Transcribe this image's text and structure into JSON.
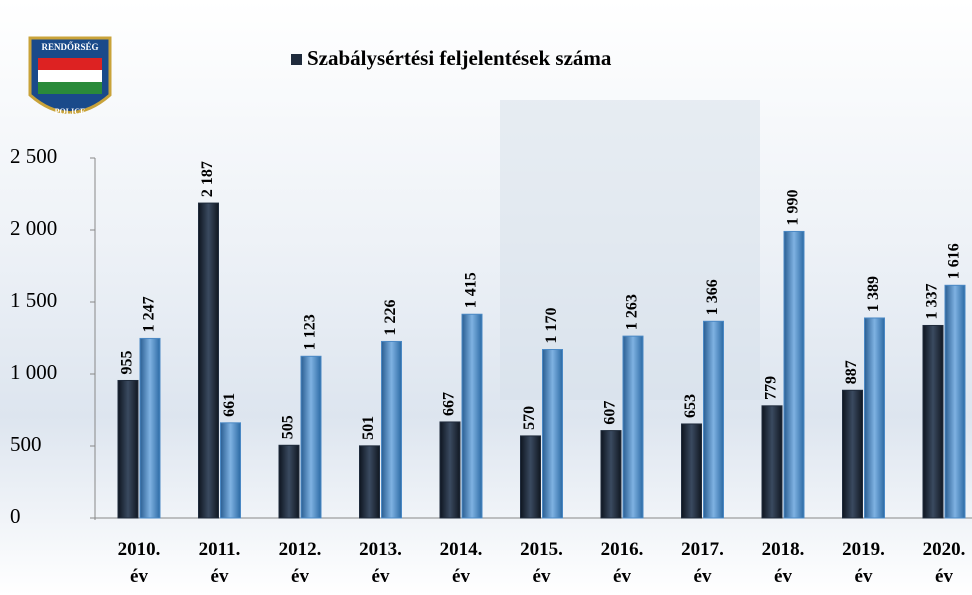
{
  "logo": {
    "top": "RENDŐRSÉG",
    "bottom": "POLICE"
  },
  "chart_data": {
    "type": "bar",
    "categories": [
      "2010. év",
      "2011. év",
      "2012. év",
      "2013. év",
      "2014. év",
      "2015. év",
      "2016. év",
      "2017. év",
      "2018. év",
      "2019. év",
      "2020. év"
    ],
    "series": [
      {
        "name": "Szabálysértési feljelentések száma",
        "color": "#1f2b3c",
        "values": [
          955,
          2187,
          505,
          501,
          667,
          570,
          607,
          653,
          779,
          887,
          1337
        ],
        "value_labels": [
          "955",
          "2 187",
          "505",
          "501",
          "667",
          "570",
          "607",
          "653",
          "779",
          "887",
          "1 337"
        ]
      },
      {
        "color": "#4a88c4",
        "values": [
          1247,
          661,
          1123,
          1226,
          1415,
          1170,
          1263,
          1366,
          1990,
          1389,
          1616
        ],
        "value_labels": [
          "1 247",
          "661",
          "1 123",
          "1 226",
          "1 415",
          "1 170",
          "1 263",
          "1 366",
          "1 990",
          "1 389",
          "1 616"
        ]
      }
    ],
    "ylim": [
      0,
      2500
    ],
    "yticks": [
      0,
      500,
      {
        "value": 1000,
        "label": "1 000"
      },
      {
        "value": 1500,
        "label": "1 500"
      },
      {
        "value": 2000,
        "label": "2 000"
      },
      {
        "value": 2500,
        "label": "2 500"
      }
    ],
    "legend": "top"
  }
}
